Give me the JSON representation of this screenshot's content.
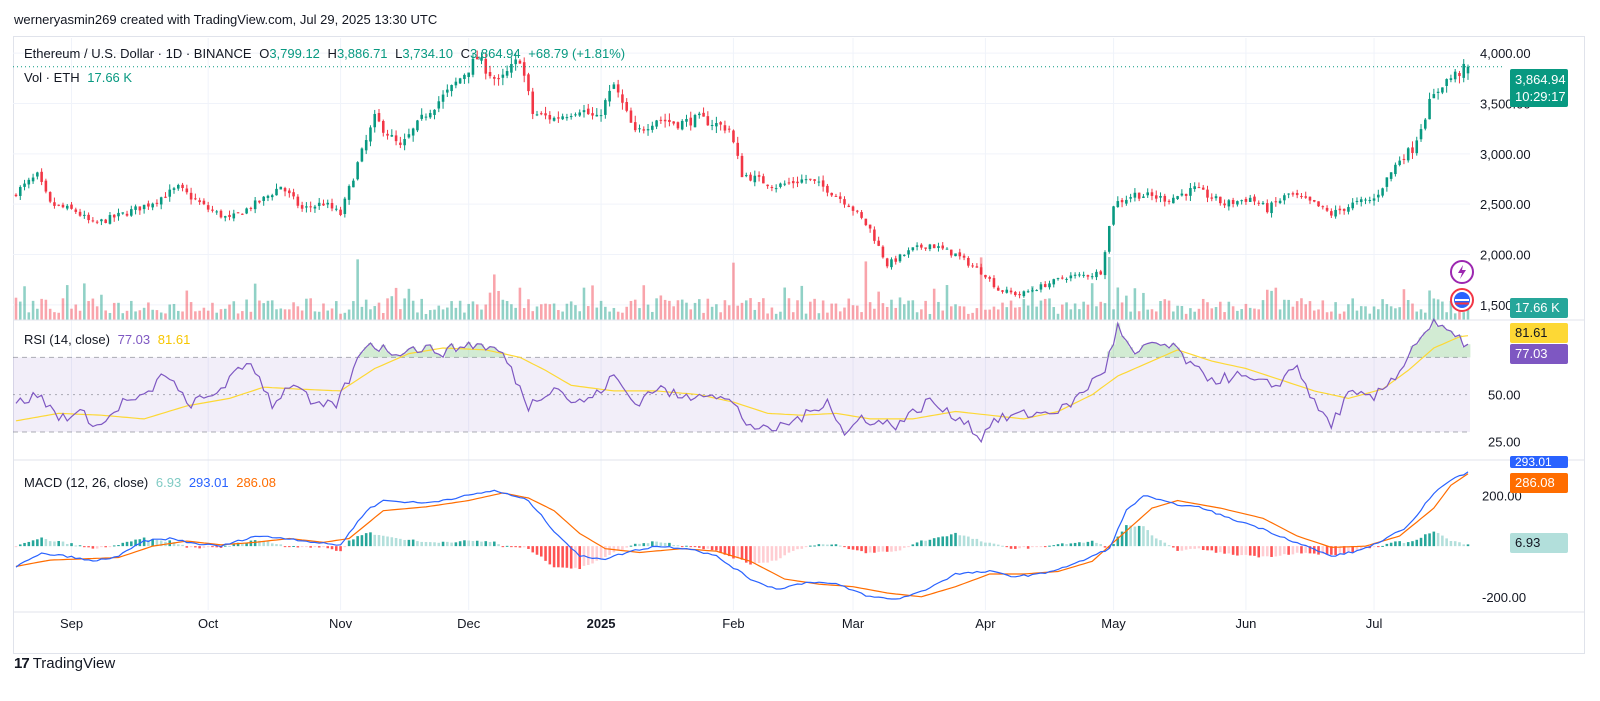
{
  "header": {
    "caption": "werneryasmin269 created with TradingView.com, Jul 29, 2025 13:30 UTC"
  },
  "instrument": {
    "name": "Ethereum / U.S. Dollar · 1D · BINANCE",
    "open_label": "O",
    "open": "3,799.12",
    "high_label": "H",
    "high": "3,886.71",
    "low_label": "L",
    "low": "3,734.10",
    "close_label": "C",
    "close": "3,864.94",
    "change": "+68.79 (+1.81%)"
  },
  "volume": {
    "label": "Vol · ETH",
    "value": "17.66 K"
  },
  "rsi": {
    "label": "RSI (14, close)",
    "value": "77.03",
    "ma_value": "81.61"
  },
  "macd": {
    "label": "MACD (12, 26, close)",
    "hist": "6.93",
    "macd": "293.01",
    "signal": "286.08"
  },
  "price_tag": {
    "price": "3,864.94",
    "countdown": "10:29:17"
  },
  "volume_tag": "17.66 K",
  "rsi_tags": {
    "ma": "81.61",
    "rsi": "77.03"
  },
  "macd_tags": {
    "macd": "293.01",
    "signal": "286.08",
    "hist": "6.93"
  },
  "footer": {
    "brand": "TradingView"
  },
  "colors": {
    "up": "#089981",
    "down": "#f23645",
    "rsi": "#7e57c2",
    "rsi_ma": "#fdd835",
    "macd": "#2962ff",
    "signal": "#ff6d00"
  },
  "chart_data": [
    {
      "type": "candlestick",
      "title": "Ethereum / U.S. Dollar · 1D · BINANCE",
      "ylim": [
        1350,
        4150
      ],
      "y_ticks": [
        "1,500.00",
        "2,000.00",
        "2,500.00",
        "3,000.00",
        "3,500.00",
        "4,000.00"
      ],
      "y_tick_values": [
        1500,
        2000,
        2500,
        3000,
        3500,
        4000
      ],
      "x_ticks": [
        "Sep",
        "Oct",
        "Nov",
        "Dec",
        "2025",
        "Feb",
        "Mar",
        "Apr",
        "May",
        "Jun",
        "Jul"
      ],
      "x_tick_index": [
        13,
        45,
        76,
        106,
        137,
        168,
        196,
        227,
        257,
        288,
        318
      ],
      "close_anchors": [
        [
          0,
          2620
        ],
        [
          5,
          2780
        ],
        [
          8,
          2500
        ],
        [
          14,
          2430
        ],
        [
          18,
          2300
        ],
        [
          25,
          2400
        ],
        [
          31,
          2500
        ],
        [
          38,
          2660
        ],
        [
          45,
          2450
        ],
        [
          50,
          2350
        ],
        [
          58,
          2550
        ],
        [
          62,
          2680
        ],
        [
          67,
          2450
        ],
        [
          72,
          2510
        ],
        [
          76,
          2400
        ],
        [
          80,
          2900
        ],
        [
          84,
          3350
        ],
        [
          90,
          3060
        ],
        [
          96,
          3400
        ],
        [
          102,
          3650
        ],
        [
          108,
          3950
        ],
        [
          113,
          3700
        ],
        [
          118,
          3950
        ],
        [
          121,
          3400
        ],
        [
          126,
          3350
        ],
        [
          132,
          3450
        ],
        [
          136,
          3340
        ],
        [
          140,
          3680
        ],
        [
          145,
          3200
        ],
        [
          150,
          3350
        ],
        [
          155,
          3300
        ],
        [
          160,
          3350
        ],
        [
          167,
          3250
        ],
        [
          170,
          2800
        ],
        [
          178,
          2680
        ],
        [
          185,
          2750
        ],
        [
          190,
          2650
        ],
        [
          195,
          2500
        ],
        [
          200,
          2250
        ],
        [
          204,
          1900
        ],
        [
          210,
          2050
        ],
        [
          214,
          2100
        ],
        [
          220,
          2000
        ],
        [
          227,
          1800
        ],
        [
          230,
          1650
        ],
        [
          235,
          1600
        ],
        [
          241,
          1700
        ],
        [
          246,
          1780
        ],
        [
          252,
          1800
        ],
        [
          254,
          1830
        ],
        [
          257,
          2500
        ],
        [
          262,
          2600
        ],
        [
          270,
          2550
        ],
        [
          276,
          2650
        ],
        [
          283,
          2500
        ],
        [
          289,
          2560
        ],
        [
          293,
          2450
        ],
        [
          298,
          2600
        ],
        [
          304,
          2500
        ],
        [
          308,
          2400
        ],
        [
          313,
          2500
        ],
        [
          318,
          2550
        ],
        [
          324,
          2950
        ],
        [
          327,
          3050
        ],
        [
          331,
          3500
        ],
        [
          334,
          3700
        ],
        [
          340,
          3864.94
        ]
      ],
      "last": {
        "open": 3799.12,
        "high": 3886.71,
        "low": 3734.1,
        "close": 3864.94
      }
    },
    {
      "type": "bar",
      "title": "Vol · ETH",
      "spike_index": [
        80,
        112,
        168,
        199,
        226,
        256
      ],
      "last_value": "17.66 K"
    },
    {
      "type": "line",
      "title": "RSI (14, close)",
      "ylim": [
        15,
        90
      ],
      "y_ticks": [
        "25.00",
        "50.00"
      ],
      "bands": [
        30,
        50,
        70
      ],
      "rsi_anchors": [
        [
          0,
          45
        ],
        [
          5,
          50
        ],
        [
          10,
          38
        ],
        [
          15,
          40
        ],
        [
          20,
          33
        ],
        [
          25,
          46
        ],
        [
          30,
          48
        ],
        [
          35,
          62
        ],
        [
          40,
          45
        ],
        [
          45,
          48
        ],
        [
          50,
          58
        ],
        [
          55,
          68
        ],
        [
          60,
          45
        ],
        [
          65,
          57
        ],
        [
          70,
          43
        ],
        [
          75,
          45
        ],
        [
          78,
          58
        ],
        [
          82,
          78
        ],
        [
          88,
          73
        ],
        [
          95,
          75
        ],
        [
          100,
          73
        ],
        [
          106,
          77
        ],
        [
          110,
          76
        ],
        [
          114,
          72
        ],
        [
          120,
          44
        ],
        [
          126,
          55
        ],
        [
          131,
          45
        ],
        [
          136,
          50
        ],
        [
          140,
          60
        ],
        [
          145,
          45
        ],
        [
          150,
          54
        ],
        [
          156,
          48
        ],
        [
          162,
          52
        ],
        [
          168,
          45
        ],
        [
          171,
          35
        ],
        [
          176,
          30
        ],
        [
          180,
          34
        ],
        [
          186,
          40
        ],
        [
          190,
          48
        ],
        [
          194,
          28
        ],
        [
          198,
          38
        ],
        [
          202,
          35
        ],
        [
          206,
          34
        ],
        [
          210,
          40
        ],
        [
          214,
          47
        ],
        [
          218,
          40
        ],
        [
          222,
          37
        ],
        [
          226,
          26
        ],
        [
          228,
          35
        ],
        [
          234,
          39
        ],
        [
          240,
          40
        ],
        [
          246,
          43
        ],
        [
          250,
          52
        ],
        [
          255,
          64
        ],
        [
          258,
          86
        ],
        [
          262,
          70
        ],
        [
          266,
          78
        ],
        [
          272,
          74
        ],
        [
          276,
          63
        ],
        [
          281,
          58
        ],
        [
          286,
          60
        ],
        [
          291,
          56
        ],
        [
          295,
          55
        ],
        [
          300,
          66
        ],
        [
          304,
          45
        ],
        [
          308,
          34
        ],
        [
          312,
          50
        ],
        [
          318,
          48
        ],
        [
          324,
          63
        ],
        [
          328,
          79
        ],
        [
          332,
          88
        ],
        [
          336,
          82
        ],
        [
          338,
          79
        ],
        [
          340,
          77.03
        ]
      ],
      "ma_anchors": [
        [
          0,
          36
        ],
        [
          10,
          40
        ],
        [
          20,
          39
        ],
        [
          30,
          37
        ],
        [
          40,
          44
        ],
        [
          50,
          48
        ],
        [
          58,
          54
        ],
        [
          66,
          53
        ],
        [
          76,
          52
        ],
        [
          84,
          64
        ],
        [
          92,
          72
        ],
        [
          100,
          75
        ],
        [
          110,
          74
        ],
        [
          118,
          70
        ],
        [
          124,
          63
        ],
        [
          130,
          55
        ],
        [
          140,
          52
        ],
        [
          150,
          52
        ],
        [
          160,
          50
        ],
        [
          168,
          46
        ],
        [
          176,
          40
        ],
        [
          184,
          39
        ],
        [
          192,
          40
        ],
        [
          200,
          37
        ],
        [
          210,
          37
        ],
        [
          220,
          41
        ],
        [
          228,
          39
        ],
        [
          236,
          37
        ],
        [
          244,
          41
        ],
        [
          252,
          50
        ],
        [
          258,
          60
        ],
        [
          266,
          68
        ],
        [
          272,
          74
        ],
        [
          280,
          68
        ],
        [
          288,
          64
        ],
        [
          296,
          58
        ],
        [
          304,
          52
        ],
        [
          312,
          48
        ],
        [
          320,
          53
        ],
        [
          326,
          63
        ],
        [
          332,
          75
        ],
        [
          338,
          81
        ],
        [
          340,
          81.61
        ]
      ],
      "last": {
        "rsi": 77.03,
        "ma": 81.61
      }
    },
    {
      "type": "line",
      "title": "MACD (12, 26, close)",
      "ylim": [
        -260,
        340
      ],
      "y_ticks": [
        "-200.00",
        "200.00"
      ],
      "macd_anchors": [
        [
          0,
          -80
        ],
        [
          6,
          -30
        ],
        [
          12,
          -40
        ],
        [
          18,
          -60
        ],
        [
          24,
          -40
        ],
        [
          30,
          20
        ],
        [
          36,
          30
        ],
        [
          42,
          10
        ],
        [
          48,
          0
        ],
        [
          56,
          40
        ],
        [
          64,
          30
        ],
        [
          72,
          10
        ],
        [
          76,
          5
        ],
        [
          82,
          140
        ],
        [
          86,
          180
        ],
        [
          96,
          170
        ],
        [
          106,
          200
        ],
        [
          112,
          220
        ],
        [
          120,
          180
        ],
        [
          126,
          60
        ],
        [
          132,
          -40
        ],
        [
          138,
          -50
        ],
        [
          144,
          -20
        ],
        [
          150,
          0
        ],
        [
          158,
          -10
        ],
        [
          164,
          -40
        ],
        [
          172,
          -130
        ],
        [
          178,
          -170
        ],
        [
          186,
          -140
        ],
        [
          192,
          -150
        ],
        [
          200,
          -200
        ],
        [
          206,
          -210
        ],
        [
          212,
          -180
        ],
        [
          220,
          -110
        ],
        [
          228,
          -100
        ],
        [
          234,
          -120
        ],
        [
          240,
          -110
        ],
        [
          248,
          -70
        ],
        [
          256,
          -10
        ],
        [
          260,
          140
        ],
        [
          264,
          200
        ],
        [
          270,
          170
        ],
        [
          278,
          150
        ],
        [
          284,
          110
        ],
        [
          290,
          80
        ],
        [
          296,
          40
        ],
        [
          302,
          0
        ],
        [
          308,
          -40
        ],
        [
          314,
          -20
        ],
        [
          320,
          20
        ],
        [
          326,
          80
        ],
        [
          332,
          210
        ],
        [
          336,
          260
        ],
        [
          340,
          293.01
        ]
      ],
      "signal_anchors": [
        [
          0,
          -80
        ],
        [
          8,
          -55
        ],
        [
          16,
          -50
        ],
        [
          24,
          -45
        ],
        [
          32,
          0
        ],
        [
          40,
          20
        ],
        [
          48,
          5
        ],
        [
          56,
          15
        ],
        [
          64,
          30
        ],
        [
          72,
          15
        ],
        [
          78,
          30
        ],
        [
          86,
          140
        ],
        [
          96,
          155
        ],
        [
          106,
          180
        ],
        [
          114,
          210
        ],
        [
          120,
          190
        ],
        [
          126,
          140
        ],
        [
          132,
          50
        ],
        [
          138,
          -10
        ],
        [
          146,
          -25
        ],
        [
          156,
          -10
        ],
        [
          164,
          -20
        ],
        [
          172,
          -60
        ],
        [
          180,
          -130
        ],
        [
          188,
          -150
        ],
        [
          196,
          -160
        ],
        [
          204,
          -185
        ],
        [
          212,
          -200
        ],
        [
          220,
          -160
        ],
        [
          228,
          -110
        ],
        [
          236,
          -110
        ],
        [
          244,
          -100
        ],
        [
          252,
          -60
        ],
        [
          260,
          60
        ],
        [
          266,
          150
        ],
        [
          272,
          180
        ],
        [
          282,
          150
        ],
        [
          292,
          110
        ],
        [
          300,
          40
        ],
        [
          308,
          -5
        ],
        [
          316,
          0
        ],
        [
          324,
          40
        ],
        [
          332,
          150
        ],
        [
          336,
          240
        ],
        [
          340,
          286.08
        ]
      ],
      "last": {
        "macd": 293.01,
        "signal": 286.08,
        "hist": 6.93
      }
    }
  ]
}
